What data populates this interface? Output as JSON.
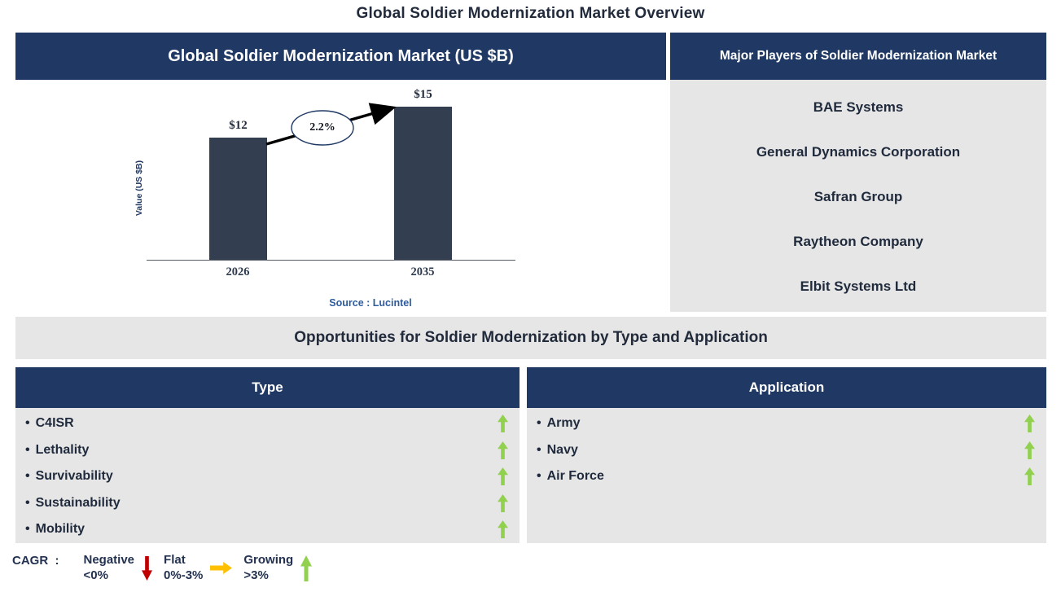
{
  "page_title": "Global Soldier Modernization Market Overview",
  "chart_data": {
    "type": "bar",
    "title": "Global Soldier Modernization Market (US $B)",
    "categories": [
      "2026",
      "2035"
    ],
    "values": [
      12,
      15
    ],
    "value_labels": [
      "$12",
      "$15"
    ],
    "ylabel": "Value (US $B)",
    "ylim": [
      0,
      15
    ],
    "grid": false,
    "annotation": "2.2%",
    "source": "Source : Lucintel"
  },
  "major_players": {
    "header": "Major Players of Soldier Modernization Market",
    "players": [
      "BAE Systems",
      "General Dynamics Corporation",
      "Safran Group",
      "Raytheon Company",
      "Elbit Systems Ltd"
    ]
  },
  "opportunities": {
    "title": "Opportunities for Soldier Modernization by Type and Application",
    "type": {
      "header": "Type",
      "items": [
        {
          "label": "C4ISR",
          "trend": "up"
        },
        {
          "label": "Lethality",
          "trend": "up"
        },
        {
          "label": "Survivability",
          "trend": "up"
        },
        {
          "label": "Sustainability",
          "trend": "up"
        },
        {
          "label": "Mobility",
          "trend": "up"
        }
      ]
    },
    "application": {
      "header": "Application",
      "items": [
        {
          "label": "Army",
          "trend": "up"
        },
        {
          "label": "Navy",
          "trend": "up"
        },
        {
          "label": "Air Force",
          "trend": "up"
        }
      ]
    }
  },
  "legend": {
    "prefix": "CAGR  :",
    "items": [
      {
        "label": "Negative",
        "range": "<0%",
        "direction": "down",
        "color": "#C00000"
      },
      {
        "label": "Flat",
        "range": "0%-3%",
        "direction": "right",
        "color": "#FFC000"
      },
      {
        "label": "Growing",
        "range": ">3%",
        "direction": "up",
        "color": "#92D050"
      }
    ]
  },
  "colors": {
    "navy_header": "#1F3864",
    "bar_fill": "#333F50",
    "panel_gray": "#E7E6E6",
    "growing_green": "#92D050",
    "negative_red": "#C00000",
    "flat_yellow": "#FFC000",
    "source_blue": "#2E5B9E",
    "dark_text": "#1F2A3C"
  }
}
